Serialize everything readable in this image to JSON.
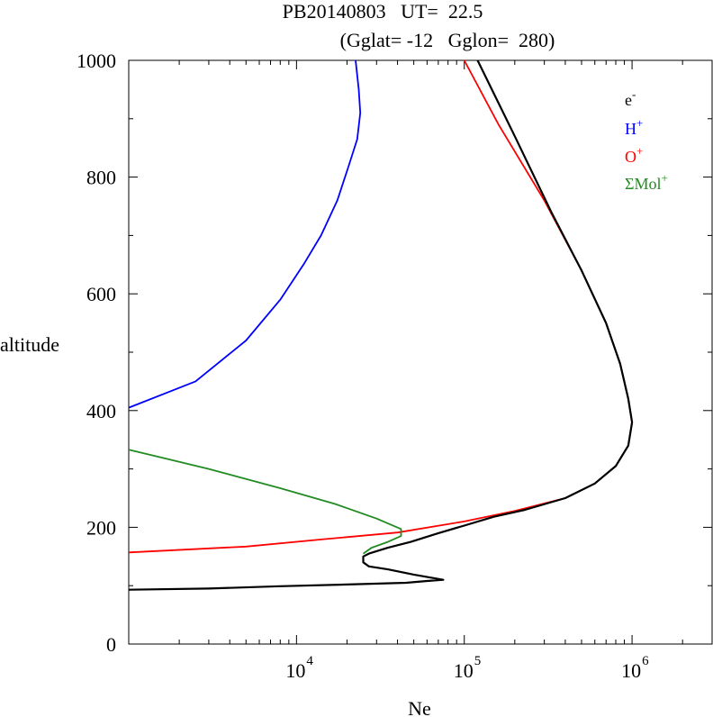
{
  "chart_data": {
    "type": "line",
    "title_line1": "PB20140803   UT=  22.5",
    "title_line2": "(Gglat= -12   Gglon=  280)",
    "xlabel": "Ne",
    "ylabel": "altitude",
    "x_scale": "log",
    "xlim": [
      1000,
      3000000
    ],
    "ylim": [
      0,
      1000
    ],
    "y_ticks": [
      0,
      200,
      400,
      600,
      800,
      1000
    ],
    "y_tick_labels": [
      "0",
      "200",
      "400",
      "600",
      "800",
      "1000"
    ],
    "x_ticks": [
      {
        "base": "10",
        "exp": "4",
        "value": 10000
      },
      {
        "base": "10",
        "exp": "5",
        "value": 100000
      },
      {
        "base": "10",
        "exp": "6",
        "value": 1000000
      }
    ],
    "legend_position": "top-right",
    "grid": false,
    "series": [
      {
        "name": "e",
        "sup": "-",
        "color": "#000000",
        "points": [
          [
            1000,
            93
          ],
          [
            3000,
            95
          ],
          [
            8000,
            99
          ],
          [
            20000,
            102
          ],
          [
            45000,
            105
          ],
          [
            60000,
            108
          ],
          [
            75000,
            110
          ],
          [
            50000,
            119
          ],
          [
            35000,
            128
          ],
          [
            27000,
            133
          ],
          [
            25000,
            140
          ],
          [
            25000,
            150
          ],
          [
            27000,
            155
          ],
          [
            35000,
            165
          ],
          [
            48000,
            175
          ],
          [
            70000,
            190
          ],
          [
            100000,
            203
          ],
          [
            150000,
            218
          ],
          [
            230000,
            230
          ],
          [
            400000,
            250
          ],
          [
            600000,
            275
          ],
          [
            800000,
            305
          ],
          [
            950000,
            340
          ],
          [
            1000000,
            380
          ],
          [
            950000,
            420
          ],
          [
            850000,
            480
          ],
          [
            700000,
            550
          ],
          [
            500000,
            640
          ],
          [
            330000,
            740
          ],
          [
            200000,
            870
          ],
          [
            120000,
            1000
          ]
        ]
      },
      {
        "name": "H",
        "sup": "+",
        "color": "#0000ff",
        "points": [
          [
            1000,
            405
          ],
          [
            2500,
            450
          ],
          [
            5000,
            520
          ],
          [
            8000,
            590
          ],
          [
            11000,
            650
          ],
          [
            14000,
            700
          ],
          [
            17500,
            760
          ],
          [
            20500,
            820
          ],
          [
            23000,
            865
          ],
          [
            24000,
            910
          ],
          [
            23500,
            950
          ],
          [
            22500,
            1000
          ]
        ]
      },
      {
        "name": "O",
        "sup": "+",
        "color": "#ff0000",
        "points": [
          [
            1000,
            157
          ],
          [
            5000,
            167
          ],
          [
            15000,
            180
          ],
          [
            40000,
            191
          ],
          [
            100000,
            210
          ],
          [
            200000,
            228
          ],
          [
            400000,
            250
          ],
          [
            600000,
            275
          ],
          [
            800000,
            305
          ],
          [
            950000,
            340
          ],
          [
            1000000,
            380
          ],
          [
            950000,
            420
          ],
          [
            850000,
            480
          ],
          [
            700000,
            550
          ],
          [
            500000,
            640
          ],
          [
            300000,
            760
          ],
          [
            160000,
            890
          ],
          [
            100000,
            1000
          ]
        ]
      },
      {
        "name": "ΣMol",
        "sup": "+",
        "color": "#228b22",
        "points": [
          [
            1000,
            333
          ],
          [
            3000,
            300
          ],
          [
            8000,
            267
          ],
          [
            17000,
            240
          ],
          [
            30000,
            215
          ],
          [
            42000,
            197
          ],
          [
            42000,
            185
          ],
          [
            35000,
            175
          ],
          [
            28000,
            165
          ],
          [
            25000,
            155
          ]
        ]
      }
    ]
  }
}
